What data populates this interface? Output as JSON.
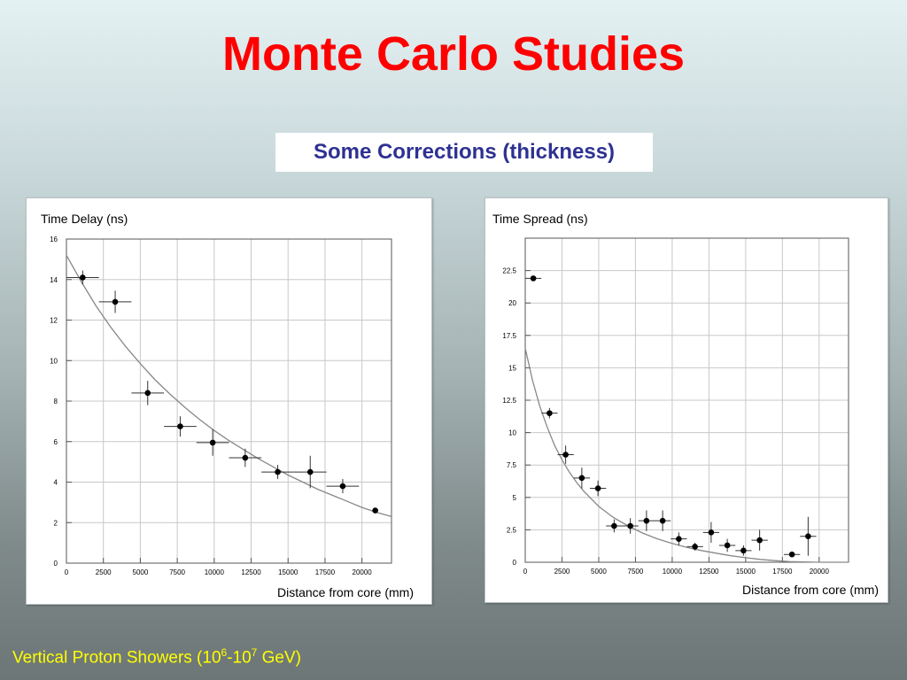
{
  "slide": {
    "title": "Monte Carlo Studies",
    "subtitle": "Some Corrections (thickness)",
    "footer": {
      "prefix": "Vertical Proton Showers (10",
      "exp1": "6",
      "mid": "-10",
      "exp2": "7",
      "suffix": " GeV)"
    },
    "colors": {
      "title": "#ff0000",
      "subtitle": "#2e3192",
      "footer": "#ffff00",
      "markers": "#000000",
      "fit_curve": "#888888",
      "grid": "#c8c8c8"
    }
  },
  "chart_data": [
    {
      "type": "scatter",
      "title": "Time Delay (ns)",
      "xlabel": "Distance from core (mm)",
      "ylabel": "",
      "xlim": [
        0,
        22000
      ],
      "ylim": [
        0,
        16
      ],
      "xticks": [
        0,
        2500,
        5000,
        7500,
        10000,
        12500,
        15000,
        17500,
        20000
      ],
      "xtick_labels": [
        "0",
        "2500",
        "5000",
        "7500",
        "10000",
        "12500",
        "15000",
        "17500",
        "20000"
      ],
      "yticks": [
        0,
        2,
        4,
        6,
        8,
        10,
        12,
        14,
        16
      ],
      "ytick_labels": [
        "0",
        "2",
        "4",
        "6",
        "8",
        "10",
        "12",
        "14",
        "16"
      ],
      "grid": true,
      "points": [
        {
          "x": 1100,
          "y": 14.1,
          "xerr": 1100,
          "yerr": 0.35
        },
        {
          "x": 3300,
          "y": 12.9,
          "xerr": 1100,
          "yerr": 0.55
        },
        {
          "x": 5500,
          "y": 8.4,
          "xerr": 1100,
          "yerr": 0.6
        },
        {
          "x": 7700,
          "y": 6.75,
          "xerr": 1100,
          "yerr": 0.5
        },
        {
          "x": 9900,
          "y": 5.95,
          "xerr": 1100,
          "yerr": 0.65
        },
        {
          "x": 12100,
          "y": 5.2,
          "xerr": 1100,
          "yerr": 0.45
        },
        {
          "x": 14300,
          "y": 4.5,
          "xerr": 1100,
          "yerr": 0.35
        },
        {
          "x": 16500,
          "y": 4.5,
          "xerr": 1100,
          "yerr": 0.8
        },
        {
          "x": 18700,
          "y": 3.8,
          "xerr": 1100,
          "yerr": 0.35
        },
        {
          "x": 20900,
          "y": 2.6,
          "xerr": 0,
          "yerr": 0.1
        }
      ],
      "fit_curve": [
        [
          0,
          15.2
        ],
        [
          1000,
          13.9
        ],
        [
          2000,
          12.7
        ],
        [
          3000,
          11.65
        ],
        [
          4000,
          10.7
        ],
        [
          5000,
          9.85
        ],
        [
          6000,
          9.05
        ],
        [
          7000,
          8.35
        ],
        [
          8000,
          7.7
        ],
        [
          9000,
          7.1
        ],
        [
          10000,
          6.55
        ],
        [
          11000,
          6.05
        ],
        [
          12000,
          5.6
        ],
        [
          13000,
          5.15
        ],
        [
          14000,
          4.75
        ],
        [
          15000,
          4.35
        ],
        [
          16000,
          4.0
        ],
        [
          17000,
          3.65
        ],
        [
          18000,
          3.35
        ],
        [
          19000,
          3.05
        ],
        [
          20000,
          2.75
        ],
        [
          21000,
          2.5
        ],
        [
          22000,
          2.3
        ]
      ]
    },
    {
      "type": "scatter",
      "title": "Time Spread (ns)",
      "xlabel": "Distance from core (mm)",
      "ylabel": "",
      "xlim": [
        0,
        22000
      ],
      "ylim": [
        0,
        25
      ],
      "xticks": [
        0,
        2500,
        5000,
        7500,
        10000,
        12500,
        15000,
        17500,
        20000
      ],
      "xtick_labels": [
        "0",
        "2500",
        "5000",
        "7500",
        "10000",
        "12500",
        "15000",
        "17500",
        "20000"
      ],
      "yticks": [
        0,
        2.5,
        5,
        7.5,
        10,
        12.5,
        15,
        17.5,
        20,
        22.5
      ],
      "ytick_labels": [
        "0",
        "2.5",
        "5",
        "7.5",
        "10",
        "12.5",
        "15",
        "17.5",
        "20",
        "22.5"
      ],
      "grid": true,
      "points": [
        {
          "x": 550,
          "y": 21.9,
          "xerr": 550,
          "yerr": 0.2
        },
        {
          "x": 1650,
          "y": 11.5,
          "xerr": 550,
          "yerr": 0.4
        },
        {
          "x": 2750,
          "y": 8.3,
          "xerr": 550,
          "yerr": 0.7
        },
        {
          "x": 3850,
          "y": 6.5,
          "xerr": 550,
          "yerr": 0.8
        },
        {
          "x": 4950,
          "y": 5.7,
          "xerr": 550,
          "yerr": 0.6
        },
        {
          "x": 6050,
          "y": 2.8,
          "xerr": 550,
          "yerr": 0.5
        },
        {
          "x": 7150,
          "y": 2.8,
          "xerr": 550,
          "yerr": 0.6
        },
        {
          "x": 8250,
          "y": 3.2,
          "xerr": 550,
          "yerr": 0.8
        },
        {
          "x": 9350,
          "y": 3.2,
          "xerr": 550,
          "yerr": 0.8
        },
        {
          "x": 10450,
          "y": 1.8,
          "xerr": 550,
          "yerr": 0.5
        },
        {
          "x": 11550,
          "y": 1.2,
          "xerr": 550,
          "yerr": 0.3
        },
        {
          "x": 12650,
          "y": 2.3,
          "xerr": 550,
          "yerr": 0.8
        },
        {
          "x": 13750,
          "y": 1.3,
          "xerr": 550,
          "yerr": 0.5
        },
        {
          "x": 14850,
          "y": 0.9,
          "xerr": 550,
          "yerr": 0.4
        },
        {
          "x": 15950,
          "y": 1.7,
          "xerr": 550,
          "yerr": 0.8
        },
        {
          "x": 18150,
          "y": 0.6,
          "xerr": 550,
          "yerr": 0.2
        },
        {
          "x": 19250,
          "y": 2.0,
          "xerr": 550,
          "yerr": 1.5
        }
      ],
      "fit_curve": [
        [
          0,
          16.5
        ],
        [
          500,
          14.0
        ],
        [
          1000,
          12.0
        ],
        [
          1500,
          10.4
        ],
        [
          2000,
          9.0
        ],
        [
          2500,
          7.9
        ],
        [
          3000,
          6.95
        ],
        [
          3500,
          6.15
        ],
        [
          4000,
          5.45
        ],
        [
          5000,
          4.3
        ],
        [
          6000,
          3.45
        ],
        [
          7000,
          2.8
        ],
        [
          8000,
          2.25
        ],
        [
          9000,
          1.8
        ],
        [
          10000,
          1.45
        ],
        [
          11000,
          1.15
        ],
        [
          12000,
          0.9
        ],
        [
          13000,
          0.7
        ],
        [
          14000,
          0.5
        ],
        [
          15000,
          0.35
        ],
        [
          16000,
          0.22
        ],
        [
          17000,
          0.12
        ],
        [
          18000,
          0.05
        ],
        [
          20000,
          0.0
        ],
        [
          22000,
          0.0
        ]
      ]
    }
  ]
}
